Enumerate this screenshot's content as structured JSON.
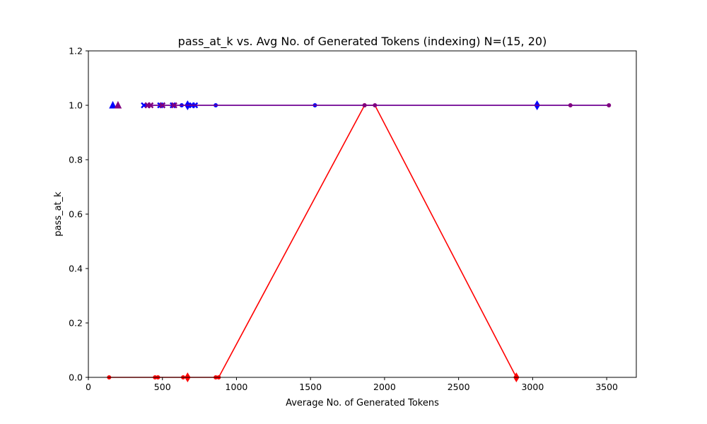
{
  "chart_data": {
    "type": "line",
    "title": "pass_at_k vs. Avg No. of Generated Tokens (indexing) N=(15, 20)",
    "xlabel": "Average No. of Generated Tokens",
    "ylabel": "pass_at_k",
    "xlim": [
      0,
      3700
    ],
    "ylim": [
      0,
      1.2
    ],
    "xticks": [
      0,
      500,
      1000,
      1500,
      2000,
      2500,
      3000,
      3500
    ],
    "yticks": [
      0.0,
      0.2,
      0.4,
      0.6,
      0.8,
      1.0,
      1.2
    ],
    "xtick_labels": [
      "0",
      "500",
      "1000",
      "1500",
      "2000",
      "2500",
      "3000",
      "3500"
    ],
    "ytick_labels": [
      "0.0",
      "0.2",
      "0.4",
      "0.6",
      "0.8",
      "1.0",
      "1.2"
    ],
    "grid": false,
    "legend": false,
    "series": [
      {
        "color": "#ff0000",
        "line": [
          [
            140,
            0.0
          ],
          [
            450,
            0.0
          ],
          [
            470,
            0.0
          ],
          [
            640,
            0.0
          ],
          [
            670,
            0.0
          ],
          [
            860,
            0.0
          ],
          [
            880,
            0.0
          ],
          [
            1865,
            1.0
          ],
          [
            1935,
            1.0
          ],
          [
            2890,
            0.0
          ]
        ],
        "markers": [
          {
            "x": 140,
            "y": 0.0,
            "m": "dot"
          },
          {
            "x": 450,
            "y": 0.0,
            "m": "dot"
          },
          {
            "x": 470,
            "y": 0.0,
            "m": "dot"
          },
          {
            "x": 640,
            "y": 0.0,
            "m": "dot"
          },
          {
            "x": 670,
            "y": 0.0,
            "m": "diamond"
          },
          {
            "x": 860,
            "y": 0.0,
            "m": "dot"
          },
          {
            "x": 880,
            "y": 0.0,
            "m": "dot"
          },
          {
            "x": 1865,
            "y": 1.0,
            "m": "dot"
          },
          {
            "x": 2890,
            "y": 0.0,
            "m": "diamond"
          }
        ]
      },
      {
        "color": "#0000ff",
        "line": [
          [
            375,
            1.0
          ],
          [
            3515,
            1.0
          ]
        ],
        "markers": [
          {
            "x": 165,
            "y": 1.0,
            "m": "triangle"
          },
          {
            "x": 375,
            "y": 1.0,
            "m": "x"
          },
          {
            "x": 400,
            "y": 1.0,
            "m": "x"
          },
          {
            "x": 485,
            "y": 1.0,
            "m": "x"
          },
          {
            "x": 500,
            "y": 1.0,
            "m": "x"
          },
          {
            "x": 570,
            "y": 1.0,
            "m": "x"
          },
          {
            "x": 630,
            "y": 1.0,
            "m": "dot"
          },
          {
            "x": 670,
            "y": 1.0,
            "m": "diamond"
          },
          {
            "x": 700,
            "y": 1.0,
            "m": "x"
          },
          {
            "x": 720,
            "y": 1.0,
            "m": "x"
          },
          {
            "x": 860,
            "y": 1.0,
            "m": "dot"
          },
          {
            "x": 1530,
            "y": 1.0,
            "m": "dot"
          },
          {
            "x": 3030,
            "y": 1.0,
            "m": "diamond"
          }
        ]
      },
      {
        "color": "#800080",
        "line": [
          [
            400,
            1.0
          ],
          [
            3515,
            1.0
          ]
        ],
        "markers": [
          {
            "x": 200,
            "y": 1.0,
            "m": "triangle"
          },
          {
            "x": 400,
            "y": 1.0,
            "m": "x"
          },
          {
            "x": 420,
            "y": 1.0,
            "m": "x"
          },
          {
            "x": 500,
            "y": 1.0,
            "m": "x"
          },
          {
            "x": 580,
            "y": 1.0,
            "m": "x"
          },
          {
            "x": 1865,
            "y": 1.0,
            "m": "dot"
          },
          {
            "x": 1935,
            "y": 1.0,
            "m": "dot"
          },
          {
            "x": 3255,
            "y": 1.0,
            "m": "dot"
          },
          {
            "x": 3515,
            "y": 1.0,
            "m": "dot"
          }
        ]
      }
    ]
  }
}
